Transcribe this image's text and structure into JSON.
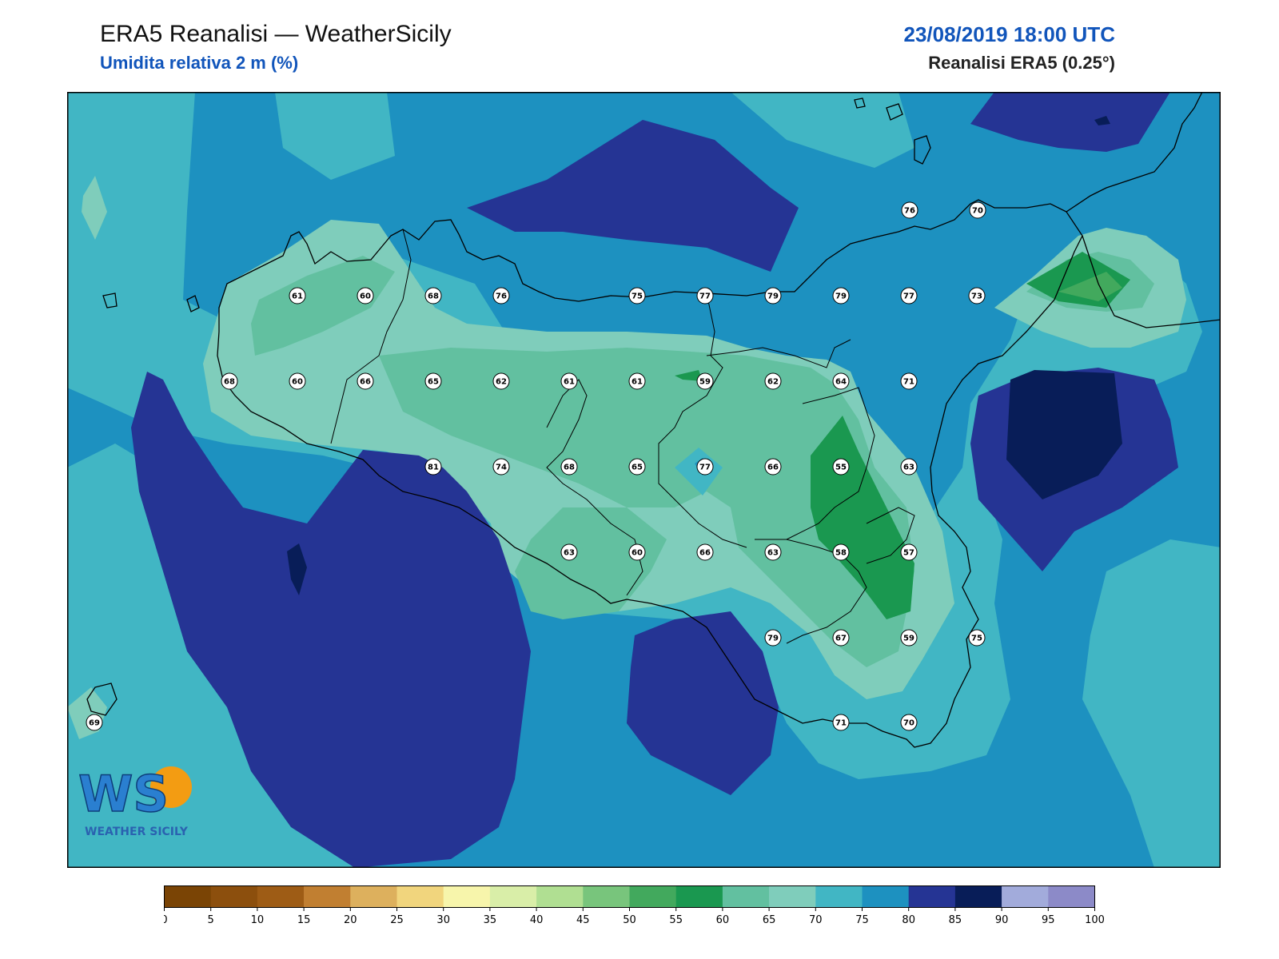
{
  "header": {
    "title": "ERA5 Reanalisi — WeatherSicily",
    "subtitle": "Umidita relativa 2 m (%)",
    "datetime": "23/08/2019 18:00 UTC",
    "source": "Reanalisi ERA5 (0.25°)"
  },
  "logo": {
    "letters": "WS",
    "brand": "WEATHER SICILY"
  },
  "colorbar": {
    "ticks": [
      "0",
      "5",
      "10",
      "15",
      "20",
      "25",
      "30",
      "35",
      "40",
      "45",
      "50",
      "55",
      "60",
      "65",
      "70",
      "75",
      "80",
      "85",
      "90",
      "95",
      "100"
    ],
    "colors": [
      "#7a4405",
      "#8c4f0d",
      "#9e5c15",
      "#c17f31",
      "#ddb05d",
      "#f1d57d",
      "#f7f5ab",
      "#d9eea8",
      "#b0df92",
      "#78c57c",
      "#42a95d",
      "#1a9850",
      "#62c0a0",
      "#7fcdbb",
      "#41b6c4",
      "#1d91c0",
      "#253494",
      "#081d58",
      "#a2abdb",
      "#8c8ac8"
    ]
  },
  "chart_data": {
    "type": "heatmap",
    "variable": "Umidita relativa 2 m (%)",
    "levels": [
      0,
      5,
      10,
      15,
      20,
      25,
      30,
      35,
      40,
      45,
      50,
      55,
      60,
      65,
      70,
      75,
      80,
      85,
      90,
      95,
      100
    ],
    "stations": [
      {
        "value": 76
      },
      {
        "value": 70
      },
      {
        "value": 61
      },
      {
        "value": 60
      },
      {
        "value": 68
      },
      {
        "value": 76
      },
      {
        "value": 75
      },
      {
        "value": 77
      },
      {
        "value": 79
      },
      {
        "value": 79
      },
      {
        "value": 77
      },
      {
        "value": 73
      },
      {
        "value": 68
      },
      {
        "value": 60
      },
      {
        "value": 66
      },
      {
        "value": 65
      },
      {
        "value": 62
      },
      {
        "value": 61
      },
      {
        "value": 61
      },
      {
        "value": 59
      },
      {
        "value": 62
      },
      {
        "value": 64
      },
      {
        "value": 71
      },
      {
        "value": 81
      },
      {
        "value": 74
      },
      {
        "value": 68
      },
      {
        "value": 65
      },
      {
        "value": 77
      },
      {
        "value": 66
      },
      {
        "value": 55
      },
      {
        "value": 63
      },
      {
        "value": 63
      },
      {
        "value": 60
      },
      {
        "value": 66
      },
      {
        "value": 63
      },
      {
        "value": 58
      },
      {
        "value": 57
      },
      {
        "value": 79
      },
      {
        "value": 67
      },
      {
        "value": 59
      },
      {
        "value": 75
      },
      {
        "value": 69
      },
      {
        "value": 71
      },
      {
        "value": 70
      }
    ]
  }
}
